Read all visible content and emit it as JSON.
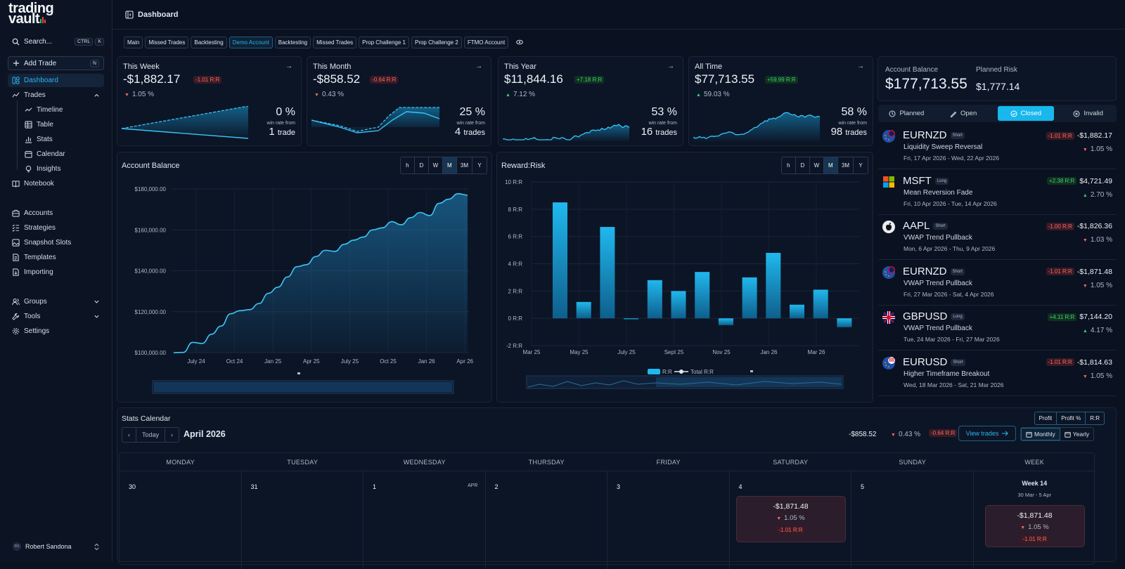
{
  "sidebar": {
    "logo_line1": "trading",
    "logo_line2": "vault",
    "search": {
      "label": "Search...",
      "kbd1": "CTRL",
      "kbd2": "K"
    },
    "add_trade": {
      "label": "Add Trade",
      "kbd": "N"
    },
    "nav": {
      "dashboard": "Dashboard",
      "trades": "Trades",
      "timeline": "Timeline",
      "table": "Table",
      "stats": "Stats",
      "calendar": "Calendar",
      "insights": "Insights",
      "notebook": "Notebook",
      "accounts": "Accounts",
      "strategies": "Strategies",
      "snapshot_slots": "Snapshot Slots",
      "templates": "Templates",
      "importing": "Importing",
      "groups": "Groups",
      "tools": "Tools",
      "settings": "Settings"
    },
    "user": {
      "initials": "RS",
      "name": "Robert Sandona"
    }
  },
  "header": {
    "title": "Dashboard"
  },
  "account_tabs": [
    "Main",
    "Missed Trades",
    "Backtesting",
    "Demo Account",
    "Backtesting",
    "Missed Trades",
    "Prop Challenge 1",
    "Prop Challenge 2",
    "FTMO Account"
  ],
  "active_tab_index": 3,
  "stat_cards": [
    {
      "label": "This Week",
      "value": "-$1,882.17",
      "rr": "-1.01  R:R",
      "rr_dir": "down",
      "pct": "1.05 %",
      "pct_dir": "down",
      "win_rate": "0 %",
      "win_label": "win rate from",
      "count": "1",
      "count_unit": "trade"
    },
    {
      "label": "This Month",
      "value": "-$858.52",
      "rr": "-0.64  R:R",
      "rr_dir": "down",
      "pct": "0.43 %",
      "pct_dir": "down",
      "win_rate": "25 %",
      "win_label": "win rate from",
      "count": "4",
      "count_unit": "trades"
    },
    {
      "label": "This Year",
      "value": "$11,844.16",
      "rr": "+7.18  R:R",
      "rr_dir": "up",
      "pct": "7.12 %",
      "pct_dir": "up",
      "win_rate": "53 %",
      "win_label": "win rate from",
      "count": "16",
      "count_unit": "trades"
    },
    {
      "label": "All Time",
      "value": "$77,713.55",
      "rr": "+59.99  R:R",
      "rr_dir": "up",
      "pct": "59.03 %",
      "pct_dir": "up",
      "win_rate": "58 %",
      "win_label": "win rate from",
      "count": "98",
      "count_unit": "trades"
    }
  ],
  "account_balance_panel": {
    "balance_label": "Account Balance",
    "balance": "$177,713.55",
    "risk_label": "Planned Risk",
    "risk": "$1,777.14"
  },
  "trade_filters": [
    "Planned",
    "Open",
    "Closed",
    "Invalid"
  ],
  "active_filter": "Closed",
  "trades": [
    {
      "symbol": "EURNZD",
      "direction": "Short",
      "strategy": "Liquidity Sweep Reversal",
      "dates": "Fri, 17 Apr 2026 - Wed, 22 Apr 2026",
      "rr": "-1.01  R:R",
      "pl": "-$1,882.17",
      "pct": "1.05 %",
      "dir": "down",
      "flag": "eurnzd"
    },
    {
      "symbol": "MSFT",
      "direction": "Long",
      "strategy": "Mean Reversion Fade",
      "dates": "Fri, 10 Apr 2026 - Tue, 14 Apr 2026",
      "rr": "+2.38  R:R",
      "pl": "$4,721.49",
      "pct": "2.70 %",
      "dir": "up",
      "flag": "msft"
    },
    {
      "symbol": "AAPL",
      "direction": "Short",
      "strategy": "VWAP Trend Pullback",
      "dates": "Mon, 6 Apr 2026 - Thu, 9 Apr 2026",
      "rr": "-1.00  R:R",
      "pl": "-$1,826.36",
      "pct": "1.03 %",
      "dir": "down",
      "flag": "aapl"
    },
    {
      "symbol": "EURNZD",
      "direction": "Short",
      "strategy": "VWAP Trend Pullback",
      "dates": "Fri, 27 Mar 2026 - Sat, 4 Apr 2026",
      "rr": "-1.01  R:R",
      "pl": "-$1,871.48",
      "pct": "1.05 %",
      "dir": "down",
      "flag": "eurnzd"
    },
    {
      "symbol": "GBPUSD",
      "direction": "Long",
      "strategy": "VWAP Trend Pullback",
      "dates": "Tue, 24 Mar 2026 - Fri, 27 Mar 2026",
      "rr": "+4.11  R:R",
      "pl": "$7,144.20",
      "pct": "4.17 %",
      "dir": "up",
      "flag": "gbpusd"
    },
    {
      "symbol": "EURUSD",
      "direction": "Short",
      "strategy": "Higher Timeframe Breakout",
      "dates": "Wed, 18 Mar 2026 - Sat, 21 Mar 2026",
      "rr": "-1.01  R:R",
      "pl": "-$1,814.63",
      "pct": "1.05 %",
      "dir": "down",
      "flag": "eurusd"
    }
  ],
  "timeframes": [
    "h",
    "D",
    "W",
    "M",
    "3M",
    "Y"
  ],
  "active_timeframe": "M",
  "chart_data": [
    {
      "type": "area",
      "title": "Account Balance",
      "x_ticks": [
        "July 24",
        "Oct 24",
        "Jan 25",
        "Apr 25",
        "July 25",
        "Oct 25",
        "Jan 26",
        "Apr 26"
      ],
      "y_ticks": [
        "$100,000.00",
        "$120,000.00",
        "$140,000.00",
        "$160,000.00",
        "$180,000.00"
      ],
      "ylim": [
        100000,
        180000
      ],
      "grid": true,
      "series": [
        {
          "values": [
            100000,
            100100,
            105000,
            104500,
            109000,
            113000,
            119000,
            120500,
            121000,
            124000,
            129000,
            132000,
            137000,
            142000,
            143000,
            147000,
            150000,
            149500,
            153000,
            155000,
            156500,
            160000,
            161000,
            164000,
            162500,
            166000,
            168500,
            167000,
            173000,
            175000,
            177700,
            177000
          ]
        }
      ]
    },
    {
      "type": "bar",
      "title": "Reward:Risk",
      "x_ticks": [
        "Mar 25",
        "May 25",
        "July 25",
        "Sept 25",
        "Nov 25",
        "Jan 26",
        "Mar 26"
      ],
      "y_ticks": [
        "-2 R:R",
        "0 R:R",
        "2 R:R",
        "4 R:R",
        "6 R:R",
        "8 R:R",
        "10 R:R"
      ],
      "ylim": [
        -2,
        10
      ],
      "grid": true,
      "legend": [
        "R:R",
        "Total R:R"
      ],
      "series": [
        {
          "name": "R:R",
          "values": [
            8.5,
            1.2,
            6.7,
            -0.05,
            2.8,
            2.0,
            3.4,
            -0.5,
            3.0,
            4.8,
            1.0,
            2.1,
            -0.65
          ]
        }
      ]
    }
  ],
  "calendar": {
    "title": "Stats Calendar",
    "modes": [
      "Profit",
      "Profit %",
      "R:R"
    ],
    "today": "Today",
    "month": "April 2026",
    "month_pl": "-$858.52",
    "month_pct": "0.43 %",
    "month_rr": "-0.64  R:R",
    "view_trades": "View trades",
    "monthly": "Monthly",
    "yearly": "Yearly",
    "days": [
      "MONDAY",
      "TUESDAY",
      "WEDNESDAY",
      "THURSDAY",
      "FRIDAY",
      "SATURDAY",
      "SUNDAY",
      "WEEK"
    ],
    "dates": [
      "30",
      "31",
      "1",
      "2",
      "3",
      "4",
      "5"
    ],
    "apr_label": "APR",
    "sat_entry": {
      "pl": "-$1,871.48",
      "pct": "1.05 %",
      "rr": "-1.01  R:R"
    },
    "week": {
      "title": "Week 14",
      "range": "30 Mar - 5 Apr",
      "pl": "-$1,871.48",
      "pct": "1.05 %",
      "rr": "-1.01  R:R"
    }
  }
}
